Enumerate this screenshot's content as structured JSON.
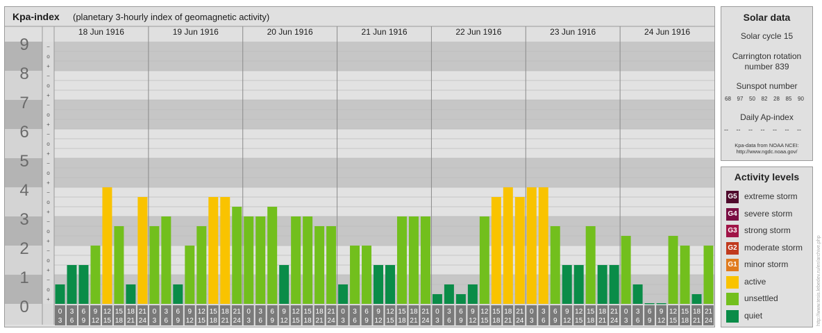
{
  "header": {
    "title": "Kpa-index",
    "subtitle": "(planetary 3-hourly index of geomagnetic activity)"
  },
  "chart_data": {
    "type": "bar",
    "title": "Kpa-index",
    "subtitle": "(planetary 3-hourly index of geomagnetic activity)",
    "ylim": [
      0,
      9
    ],
    "y_ticks": [
      "0",
      "1",
      "2",
      "3",
      "4",
      "5",
      "6",
      "7",
      "8",
      "9"
    ],
    "sub_ticks": [
      "+",
      "o",
      "−"
    ],
    "days": [
      "18 Jun 1916",
      "19 Jun 1916",
      "20 Jun 1916",
      "21 Jun 1916",
      "22 Jun 1916",
      "23 Jun 1916",
      "24 Jun 1916"
    ],
    "interval_labels": [
      [
        "0",
        "3"
      ],
      [
        "3",
        "6"
      ],
      [
        "6",
        "9"
      ],
      [
        "9",
        "12"
      ],
      [
        "12",
        "15"
      ],
      [
        "15",
        "18"
      ],
      [
        "18",
        "21"
      ],
      [
        "21",
        "24"
      ]
    ],
    "values": [
      0.667,
      1.333,
      1.333,
      2.0,
      4.0,
      2.667,
      0.667,
      3.667,
      2.667,
      3.0,
      0.667,
      2.0,
      2.667,
      3.667,
      3.667,
      3.333,
      3.0,
      3.0,
      3.333,
      1.333,
      3.0,
      3.0,
      2.667,
      2.667,
      0.667,
      2.0,
      2.0,
      1.333,
      1.333,
      3.0,
      3.0,
      3.0,
      0.333,
      0.667,
      0.333,
      0.667,
      3.0,
      3.667,
      4.0,
      3.667,
      4.0,
      4.0,
      2.667,
      1.333,
      1.333,
      2.667,
      1.333,
      1.333,
      2.333,
      0.667,
      0.0,
      0.0,
      2.333,
      2.0,
      0.333,
      2.0
    ],
    "level_colors": {
      "quiet": "#0a8c48",
      "unsettled": "#72bf1d",
      "active": "#f9c300",
      "minor_storm": "#e07b1e",
      "moderate_storm": "#c03a1e",
      "strong_storm": "#a01447",
      "severe_storm": "#7a0d42",
      "extreme_storm": "#4f0a2c"
    },
    "grid": true
  },
  "solar_data": {
    "title": "Solar data",
    "cycle": "Solar cycle 15",
    "carrington_1": "Carrington rotation",
    "carrington_2": "number 839",
    "sunspot_title": "Sunspot number",
    "sunspot_values": [
      "68",
      "97",
      "50",
      "82",
      "28",
      "85",
      "90"
    ],
    "ap_title": "Daily Ap-index",
    "ap_values": [
      "--",
      "--",
      "--",
      "--",
      "--",
      "--",
      "--"
    ],
    "source_1": "Kpa-data from NOAA NCEI:",
    "source_2": "http://www.ngdc.noaa.gov/"
  },
  "activity_levels": {
    "title": "Activity levels",
    "items": [
      {
        "badge": "G5",
        "label": "extreme storm",
        "color": "#4f0a2c"
      },
      {
        "badge": "G4",
        "label": "severe storm",
        "color": "#7a0d42"
      },
      {
        "badge": "G3",
        "label": "strong storm",
        "color": "#a01447"
      },
      {
        "badge": "G2",
        "label": "moderate storm",
        "color": "#c03a1e"
      },
      {
        "badge": "G1",
        "label": "minor storm",
        "color": "#e07b1e"
      },
      {
        "badge": "",
        "label": "active",
        "color": "#f9c300"
      },
      {
        "badge": "",
        "label": "unsettled",
        "color": "#72bf1d"
      },
      {
        "badge": "",
        "label": "quiet",
        "color": "#0a8c48"
      }
    ]
  },
  "credit": "http://www.tesis.lebedev.ru/en/archive.php"
}
